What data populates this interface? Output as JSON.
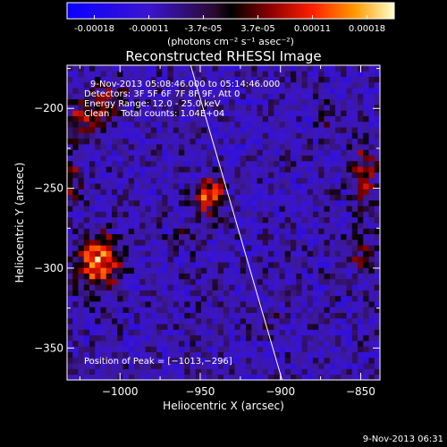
{
  "colorbar": {
    "tick_labels": [
      "-0.00018",
      "-0.00011",
      "-3.7e-05",
      "3.7e-05",
      "0.00011",
      "0.00018"
    ],
    "unit_label": "(photons cm⁻² s⁻¹ asec⁻²)",
    "range": [
      -0.00018,
      0.00018
    ]
  },
  "chart_data": {
    "type": "heatmap",
    "title": "Reconstructed RHESSI Image",
    "xlabel": "Heliocentric X (arcsec)",
    "ylabel": "Heliocentric Y (arcsec)",
    "xlim": [
      -1033,
      -838
    ],
    "ylim": [
      -370,
      -173
    ],
    "x_ticks": [
      {
        "value": -1000,
        "label": "−1000"
      },
      {
        "value": -950,
        "label": "−950"
      },
      {
        "value": -900,
        "label": "−900"
      },
      {
        "value": -850,
        "label": "−850"
      }
    ],
    "y_ticks": [
      {
        "value": -200,
        "label": "−200"
      },
      {
        "value": -250,
        "label": "−250"
      },
      {
        "value": -300,
        "label": "−300"
      },
      {
        "value": -350,
        "label": "−350"
      }
    ],
    "annotations": [
      "9-Nov-2013 05:08:46.000 to 05:14:46.000",
      "Detectors: 3F 5F 6F 7F 8F 9F, Att 0",
      "Energy Range: 12.0 - 25.0 keV",
      "Clean    Total counts: 1.04E+04"
    ],
    "peak_label": "Position of Peak = [−1013,−296]",
    "limb_line": [
      [
        -956,
        -173
      ],
      [
        -899,
        -370
      ]
    ],
    "sources": [
      {
        "x": -1013,
        "y": -296,
        "sx": 9,
        "sy": 11,
        "amp": 0.00018
      },
      {
        "x": -944,
        "y": -255,
        "sx": 6,
        "sy": 8,
        "amp": 0.00015
      },
      {
        "x": -1020,
        "y": -205,
        "sx": 12,
        "sy": 10,
        "amp": 8e-05
      },
      {
        "x": -1005,
        "y": -192,
        "sx": 8,
        "sy": 6,
        "amp": 6e-05
      },
      {
        "x": -848,
        "y": -240,
        "sx": 6,
        "sy": 14,
        "amp": 9e-05
      },
      {
        "x": -850,
        "y": -290,
        "sx": 6,
        "sy": 8,
        "amp": 6e-05
      },
      {
        "x": -1030,
        "y": -245,
        "sx": 5,
        "sy": 10,
        "amp": 7e-05
      },
      {
        "x": -905,
        "y": -335,
        "sx": 5,
        "sy": 5,
        "amp": 5e-05
      },
      {
        "x": -960,
        "y": -280,
        "sx": 6,
        "sy": 5,
        "amp": 4e-05
      },
      {
        "x": -870,
        "y": -205,
        "sx": 5,
        "sy": 5,
        "amp": 4e-05
      }
    ],
    "grid": false
  },
  "footer": {
    "date": "9-Nov-2013 06:31"
  }
}
